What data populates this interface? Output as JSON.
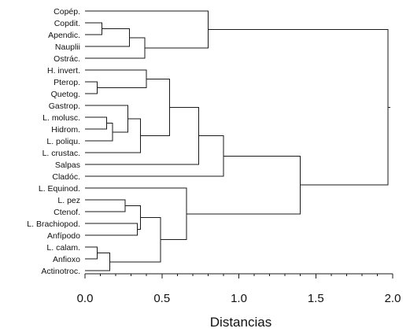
{
  "dendrogram": {
    "axis": {
      "title": "Distancias",
      "min": 0,
      "max": 2,
      "ticks": [
        0,
        0.5,
        1,
        1.5,
        2
      ],
      "tick_labels": [
        "0.0",
        "0.5",
        "1.0",
        "1.5",
        "2.0"
      ],
      "minor_step": 0.1
    },
    "leaves": [
      "Copép.",
      "Copdit.",
      "Apendic.",
      "Nauplii",
      "Ostrác.",
      "H. invert.",
      "Pterop.",
      "Quetog.",
      "Gastrop.",
      "L. molusc.",
      "Hidrom.",
      "L. poliqu.",
      "L. crustac.",
      "Salpas",
      "Cladóc.",
      "L. Equinod.",
      "L. pez",
      "Ctenof.",
      "L. Brachiopod.",
      "Anfípodo",
      "L. calam.",
      "Anfioxo",
      "Actinotroc."
    ],
    "merges": [
      {
        "a": "Copdit.",
        "b": "Apendic.",
        "height": 0.11
      },
      {
        "a": 0,
        "b": "Nauplii",
        "height": 0.29
      },
      {
        "a": 1,
        "b": "Ostrác.",
        "height": 0.39
      },
      {
        "a": "Copép.",
        "b": 2,
        "height": 0.8
      },
      {
        "a": "Pterop.",
        "b": "Quetog.",
        "height": 0.08
      },
      {
        "a": "H. invert.",
        "b": 4,
        "height": 0.4
      },
      {
        "a": "L. molusc.",
        "b": "Hidrom.",
        "height": 0.14
      },
      {
        "a": 6,
        "b": "L. poliqu.",
        "height": 0.18
      },
      {
        "a": "Gastrop.",
        "b": 7,
        "height": 0.28
      },
      {
        "a": 8,
        "b": "L. crustac.",
        "height": 0.36
      },
      {
        "a": 5,
        "b": 9,
        "height": 0.55
      },
      {
        "a": 10,
        "b": "Salpas",
        "height": 0.74
      },
      {
        "a": 11,
        "b": "Cladóc.",
        "height": 0.9
      },
      {
        "a": "L. pez",
        "b": "Ctenof.",
        "height": 0.26
      },
      {
        "a": "L. Brachiopod.",
        "b": "Anfípodo",
        "height": 0.34
      },
      {
        "a": 13,
        "b": 14,
        "height": 0.36
      },
      {
        "a": "L. calam.",
        "b": "Anfioxo",
        "height": 0.08
      },
      {
        "a": 16,
        "b": "Actinotroc.",
        "height": 0.16
      },
      {
        "a": 15,
        "b": 17,
        "height": 0.49
      },
      {
        "a": "L. Equinod.",
        "b": 18,
        "height": 0.66
      },
      {
        "a": 12,
        "b": 19,
        "height": 1.4
      },
      {
        "a": 3,
        "b": 20,
        "height": 1.97
      }
    ]
  }
}
